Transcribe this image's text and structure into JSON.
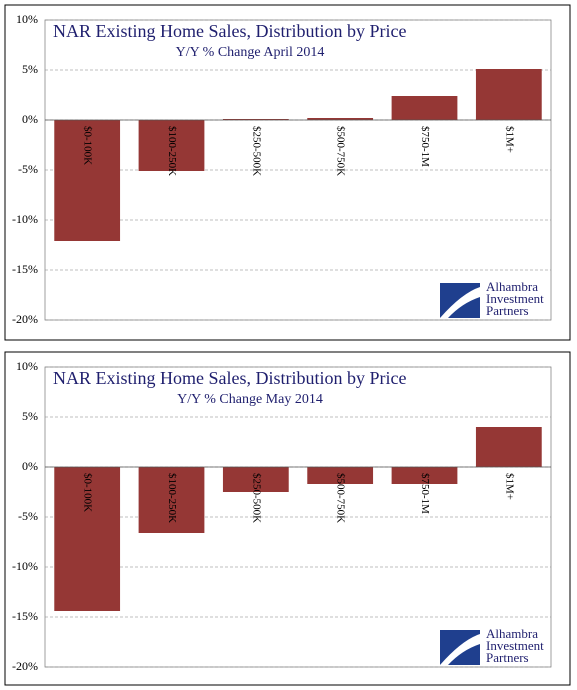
{
  "chart_data": [
    {
      "type": "bar",
      "title": "NAR Existing Home Sales, Distribution by Price",
      "subtitle": "Y/Y % Change April 2014",
      "categories": [
        "$0-100K",
        "$100-250K",
        "$250-500K",
        "$500-750K",
        "$750-1M",
        "$1M+"
      ],
      "values": [
        -12.1,
        -5.1,
        0.1,
        0.2,
        2.4,
        5.1
      ],
      "color": "#953735",
      "ylim": [
        -20,
        10
      ],
      "yticks": [
        {
          "value": -20,
          "label": "-20%"
        },
        {
          "value": -15,
          "label": "-15%"
        },
        {
          "value": -10,
          "label": "-10%"
        },
        {
          "value": -5,
          "label": "-5%"
        },
        {
          "value": 0,
          "label": "0%"
        },
        {
          "value": 5,
          "label": "5%"
        },
        {
          "value": 10,
          "label": "10%"
        }
      ],
      "grid": true,
      "annotation": [
        "Alhambra",
        "Investment",
        "Partners"
      ]
    },
    {
      "type": "bar",
      "title": "NAR Existing Home Sales, Distribution by Price",
      "subtitle": "Y/Y % Change May 2014",
      "categories": [
        "$0-100K",
        "$100-250K",
        "$250-500K",
        "$500-750K",
        "$750-1M",
        "$1M+"
      ],
      "values": [
        -14.4,
        -6.6,
        -2.5,
        -1.7,
        -1.7,
        4.0
      ],
      "color": "#953735",
      "ylim": [
        -20,
        10
      ],
      "yticks": [
        {
          "value": -20,
          "label": "-20%"
        },
        {
          "value": -15,
          "label": "-15%"
        },
        {
          "value": -10,
          "label": "-10%"
        },
        {
          "value": -5,
          "label": "-5%"
        },
        {
          "value": 0,
          "label": "0%"
        },
        {
          "value": 5,
          "label": "5%"
        },
        {
          "value": 10,
          "label": "10%"
        }
      ],
      "grid": true,
      "annotation": [
        "Alhambra",
        "Investment",
        "Partners"
      ]
    }
  ]
}
